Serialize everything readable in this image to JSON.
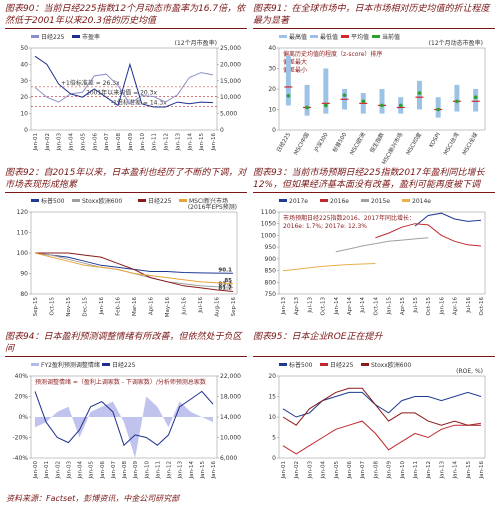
{
  "chart_data": [
    {
      "type": "line",
      "title": "图表90：当前日经225指数12个月动态市盈率为16.7倍，依然低于2001年以来20.3倍的历史均值",
      "y2_label": "(12个月市盈率)",
      "categories": [
        "Jan-01",
        "Jan-02",
        "Jan-03",
        "Jan-04",
        "Jan-05",
        "Jan-06",
        "Jan-07",
        "Jan-08",
        "Jan-09",
        "Jan-10",
        "Jan-11",
        "Jan-12",
        "Jan-13",
        "Jan-14",
        "Jan-15",
        "Jan-16"
      ],
      "series": [
        {
          "name": "日经225",
          "color": "#8a8fc9",
          "axis": "y2",
          "values": [
            13000,
            10000,
            8500,
            11000,
            11500,
            16500,
            17000,
            13500,
            8000,
            10500,
            10200,
            8500,
            10700,
            16000,
            17500,
            16800
          ]
        },
        {
          "name": "市盈率",
          "color": "#1f2f8f",
          "values": [
            45,
            40,
            28,
            22,
            20,
            25,
            20,
            15,
            40,
            16,
            14,
            14,
            17,
            16,
            17,
            16.7
          ]
        }
      ],
      "reference_lines": [
        {
          "value": 26.3,
          "label": "+1倍标准差 = 26.3x"
        },
        {
          "value": 20.3,
          "label": "2001年以来均值 = 20.3x"
        },
        {
          "value": 14.3,
          "label": "-1倍标准差 = 14.3x"
        }
      ],
      "ylim": [
        0,
        50
      ],
      "yticks": [
        0,
        10,
        20,
        30,
        40,
        50
      ],
      "y2lim": [
        0,
        25000
      ],
      "y2ticks": [
        0,
        {
          "value": 5000,
          "label": "5,000"
        },
        {
          "value": 10000,
          "label": "10,000"
        },
        {
          "value": 15000,
          "label": "15,000"
        },
        {
          "value": 20000,
          "label": "20,000"
        },
        {
          "value": 25000,
          "label": "25,000"
        }
      ],
      "grid": false
    },
    {
      "type": "range",
      "title": "图表91：在全球市场中，日本市场相对历史均值的折让程度最为显著",
      "y_label": "(12个月动态市盈率)",
      "annotations": [
        "偏离历史均值的程度（z-score）排序",
        "偏差最大",
        "偏差最小"
      ],
      "categories": [
        "日经225",
        "MSCI中国",
        "沪深300",
        "标普500",
        "MSCI欧洲",
        "恒生指数",
        "MSCI新兴市场",
        "MSCI印度",
        "KOSPI",
        "MSCI台湾",
        "MSCI全球"
      ],
      "series": [
        {
          "name": "最高值",
          "color": "#9cc3e6",
          "values": [
            36,
            22,
            30,
            20,
            18,
            20,
            16,
            24,
            16,
            22,
            20
          ]
        },
        {
          "name": "最低值",
          "color": "#9cc3e6",
          "values": [
            12,
            7,
            8,
            10,
            8,
            8,
            8,
            10,
            6,
            9,
            9
          ]
        },
        {
          "name": "平均值",
          "color": "#d62728",
          "values": [
            21,
            11,
            13,
            15,
            13,
            12,
            11,
            16,
            10,
            14,
            14
          ]
        },
        {
          "name": "当前值",
          "color": "#2ca02c",
          "values": [
            16.7,
            11,
            12,
            17,
            14,
            12,
            12,
            18,
            10,
            14,
            16
          ]
        }
      ],
      "ylim": [
        0,
        40
      ],
      "yticks": [
        0,
        10,
        20,
        30,
        40
      ],
      "grid": false
    },
    {
      "type": "line",
      "title": "图表92：自2015年以来，日本盈利也经历了不断的下调，对市场表现形成拖累",
      "y2_label": "(2016年EPS预测)",
      "categories": [
        "Sep-15",
        "Oct-15",
        "Nov-15",
        "Dec-15",
        "Jan-16",
        "Feb-16",
        "Mar-16",
        "Apr-16",
        "May-16",
        "Jun-16",
        "Jul-16",
        "Aug-16",
        "Sep-16"
      ],
      "series": [
        {
          "name": "标普500",
          "color": "#1f3a93",
          "values": [
            100,
            99,
            98,
            96,
            94,
            93,
            92,
            91,
            91,
            90.5,
            90.3,
            90.2,
            90.1
          ]
        },
        {
          "name": "Stoxx欧洲600",
          "color": "#a0a0a0",
          "values": [
            100,
            99,
            97,
            95,
            93,
            92,
            90,
            88,
            86,
            85,
            84,
            83.5,
            83.2
          ]
        },
        {
          "name": "日经225",
          "color": "#8b1a1a",
          "values": [
            100,
            100,
            100,
            99,
            98,
            95,
            92,
            88,
            86,
            84,
            83,
            82,
            81.2
          ]
        },
        {
          "name": "MSCI新兴市场",
          "color": "#e8a33d",
          "values": [
            100,
            98,
            96,
            94,
            93,
            92,
            90,
            89,
            88,
            87,
            86,
            85.5,
            85
          ]
        }
      ],
      "ylim": [
        80,
        120
      ],
      "yticks": [
        80,
        90,
        100,
        110,
        120
      ],
      "grid": false
    },
    {
      "type": "line",
      "title": "图表93：当前市场预期日经225指数2017年盈利同比增长12%，但如果经济基本面没有改善，盈利可能再度被下调",
      "annotations": [
        "市场预期日经225指数2016、2017年同比增长：",
        "2016e: 1.7%; 2017e: 12.3%"
      ],
      "categories": [
        "Jan-13",
        "Apr-13",
        "Jul-13",
        "Oct-13",
        "Jan-14",
        "Apr-14",
        "Jul-14",
        "Oct-14",
        "Jan-15",
        "Apr-15",
        "Jul-15",
        "Oct-15",
        "Jan-16",
        "Apr-16",
        "Jul-16",
        "Oct-16"
      ],
      "series": [
        {
          "name": "2017e",
          "color": "#1f3a93",
          "values": [
            null,
            null,
            null,
            null,
            null,
            null,
            null,
            null,
            null,
            null,
            1040,
            1085,
            1095,
            1070,
            1060,
            1065
          ]
        },
        {
          "name": "2016e",
          "color": "#c0282d",
          "values": [
            null,
            null,
            null,
            null,
            null,
            null,
            null,
            990,
            1010,
            1035,
            1050,
            1045,
            1000,
            975,
            960,
            955
          ]
        },
        {
          "name": "2015e",
          "color": "#a0a0a0",
          "values": [
            null,
            null,
            null,
            null,
            930,
            942,
            955,
            965,
            975,
            980,
            985,
            990,
            null,
            null,
            null,
            null
          ]
        },
        {
          "name": "2014e",
          "color": "#e8b04a",
          "values": [
            850,
            855,
            862,
            868,
            872,
            876,
            878,
            880,
            null,
            null,
            null,
            null,
            null,
            null,
            null,
            null
          ]
        }
      ],
      "ylim": [
        750,
        1100
      ],
      "yticks": [
        750,
        800,
        850,
        900,
        950,
        1000,
        1050,
        1100
      ],
      "grid": false
    },
    {
      "type": "line",
      "title": "图表94：日本盈利预测调整情绪有所改善，但依然处于负区间",
      "annotations": [
        "预测调整情绪 =（盈利上调家数 - 下调家数）/分析师预测总家数"
      ],
      "categories": [
        "Jan-00",
        "Jan-01",
        "Jan-02",
        "Jan-03",
        "Jan-04",
        "Jan-05",
        "Jan-06",
        "Jan-07",
        "Jan-08",
        "Jan-09",
        "Jan-10",
        "Jan-11",
        "Jan-12",
        "Jan-13",
        "Jan-14",
        "Jan-15",
        "Jan-16"
      ],
      "series": [
        {
          "name": "FY2盈利预测调整情绪",
          "color": "#b4b8ea",
          "style": "area",
          "values": [
            -10,
            -5,
            5,
            10,
            -20,
            5,
            10,
            15,
            -5,
            -40,
            20,
            10,
            -10,
            15,
            5,
            0,
            -5
          ]
        },
        {
          "name": "日经225",
          "color": "#1f2f8f",
          "axis": "y2",
          "values": [
            19000,
            13000,
            10000,
            9000,
            11500,
            16000,
            17000,
            15000,
            8500,
            10500,
            10000,
            8500,
            10500,
            16000,
            17500,
            19000,
            16500
          ]
        }
      ],
      "ylim": [
        -40,
        40
      ],
      "yticks": [
        {
          "value": -40,
          "label": "-40%"
        },
        {
          "value": -20,
          "label": "-20%"
        },
        {
          "value": 0,
          "label": "0%"
        },
        {
          "value": 20,
          "label": "20%"
        },
        {
          "value": 40,
          "label": "40%"
        }
      ],
      "y2lim": [
        6000,
        22000
      ],
      "y2ticks": [
        {
          "value": 6000,
          "label": "6,000"
        },
        {
          "value": 10000,
          "label": "10,000"
        },
        {
          "value": 14000,
          "label": "14,000"
        },
        {
          "value": 18000,
          "label": "18,000"
        },
        {
          "value": 22000,
          "label": "22,000"
        }
      ],
      "grid": false
    },
    {
      "type": "line",
      "title": "图表95：日本企业ROE正在提升",
      "y_label": "(ROE, %)",
      "categories": [
        "Jan-01",
        "Jan-02",
        "Jan-03",
        "Jan-04",
        "Jan-05",
        "Jan-06",
        "Jan-07",
        "Jan-08",
        "Jan-09",
        "Jan-10",
        "Jan-11",
        "Jan-12",
        "Jan-13",
        "Jan-14",
        "Jan-15",
        "Jan-16"
      ],
      "series": [
        {
          "name": "标普500",
          "color": "#1f3a93",
          "values": [
            12,
            10,
            11,
            14,
            15,
            16,
            16,
            13,
            11,
            14,
            15,
            15,
            14,
            15,
            16,
            15
          ]
        },
        {
          "name": "日经225",
          "color": "#c0282d",
          "values": [
            3,
            1,
            3,
            5,
            7,
            8,
            9,
            6,
            2,
            4,
            6,
            5,
            7,
            8,
            8,
            8.5
          ]
        },
        {
          "name": "Stoxx欧洲600",
          "color": "#8b1a1a",
          "values": [
            10,
            8,
            12,
            14,
            16,
            17,
            17,
            13,
            9,
            11,
            11,
            9,
            8,
            9,
            8,
            8
          ]
        }
      ],
      "ylim": [
        0,
        20
      ],
      "yticks": [
        0,
        5,
        10,
        15,
        20
      ],
      "grid": false
    }
  ],
  "footer": "资料来源：Factset，彭博资讯，中金公司研究部"
}
